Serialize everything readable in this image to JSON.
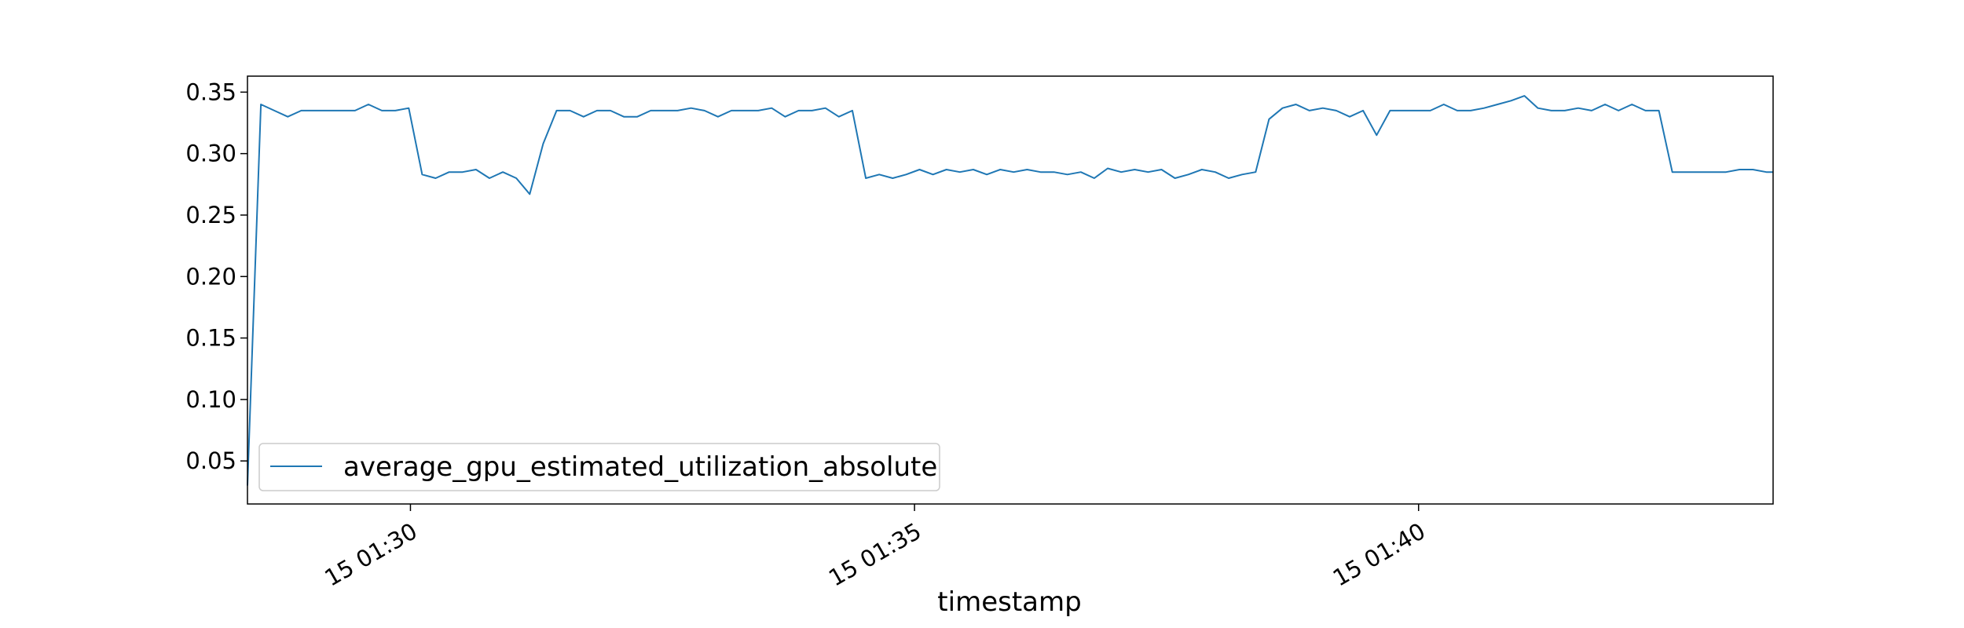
{
  "chart_data": {
    "type": "line",
    "title": "",
    "xlabel": "timestamp",
    "ylabel": "",
    "x_ticks": [
      "15 01:30",
      "15 01:35",
      "15 01:40"
    ],
    "y_ticks": [
      "0.05",
      "0.10",
      "0.15",
      "0.20",
      "0.25",
      "0.30",
      "0.35"
    ],
    "xlim": [
      "01:28:23",
      "01:43:31"
    ],
    "ylim": [
      0.015,
      0.363
    ],
    "grid": false,
    "legend_position": "lower-left",
    "series": [
      {
        "name": "average_gpu_estimated_utilization_absolute",
        "color": "#1f77b4",
        "x": [
          "01:28:23",
          "01:28:31",
          "01:28:39",
          "01:28:47",
          "01:28:55",
          "01:29:03",
          "01:29:11",
          "01:29:19",
          "01:29:27",
          "01:29:35",
          "01:29:43",
          "01:29:51",
          "01:29:59",
          "01:30:07",
          "01:30:15",
          "01:30:23",
          "01:30:31",
          "01:30:39",
          "01:30:47",
          "01:30:55",
          "01:31:03",
          "01:31:11",
          "01:31:19",
          "01:31:27",
          "01:31:35",
          "01:31:43",
          "01:31:51",
          "01:31:59",
          "01:32:07",
          "01:32:15",
          "01:32:23",
          "01:32:31",
          "01:32:39",
          "01:32:47",
          "01:32:55",
          "01:33:03",
          "01:33:11",
          "01:33:19",
          "01:33:27",
          "01:33:35",
          "01:33:43",
          "01:33:51",
          "01:33:59",
          "01:34:07",
          "01:34:15",
          "01:34:23",
          "01:34:31",
          "01:34:39",
          "01:34:47",
          "01:34:55",
          "01:35:03",
          "01:35:11",
          "01:35:19",
          "01:35:27",
          "01:35:35",
          "01:35:43",
          "01:35:51",
          "01:35:59",
          "01:36:07",
          "01:36:15",
          "01:36:23",
          "01:36:31",
          "01:36:39",
          "01:36:47",
          "01:36:55",
          "01:37:03",
          "01:37:11",
          "01:37:19",
          "01:37:27",
          "01:37:35",
          "01:37:43",
          "01:37:51",
          "01:37:59",
          "01:38:07",
          "01:38:15",
          "01:38:23",
          "01:38:31",
          "01:38:39",
          "01:38:47",
          "01:38:55",
          "01:39:03",
          "01:39:11",
          "01:39:19",
          "01:39:27",
          "01:39:35",
          "01:39:43",
          "01:39:51",
          "01:39:59",
          "01:40:07",
          "01:40:15",
          "01:40:23",
          "01:40:31",
          "01:40:39",
          "01:40:47",
          "01:40:55",
          "01:41:03",
          "01:41:11",
          "01:41:19",
          "01:41:27",
          "01:41:35",
          "01:41:43",
          "01:41:51",
          "01:41:59",
          "01:42:07",
          "01:42:15",
          "01:42:23",
          "01:42:31",
          "01:42:39",
          "01:42:47",
          "01:42:55",
          "01:43:03",
          "01:43:11",
          "01:43:19",
          "01:43:27",
          "01:43:31"
        ],
        "values": [
          0.03,
          0.34,
          0.335,
          0.33,
          0.335,
          0.335,
          0.335,
          0.335,
          0.335,
          0.34,
          0.335,
          0.335,
          0.337,
          0.283,
          0.28,
          0.285,
          0.285,
          0.287,
          0.28,
          0.285,
          0.28,
          0.267,
          0.308,
          0.335,
          0.335,
          0.33,
          0.335,
          0.335,
          0.33,
          0.33,
          0.335,
          0.335,
          0.335,
          0.337,
          0.335,
          0.33,
          0.335,
          0.335,
          0.335,
          0.337,
          0.33,
          0.335,
          0.335,
          0.337,
          0.33,
          0.335,
          0.28,
          0.283,
          0.28,
          0.283,
          0.287,
          0.283,
          0.287,
          0.285,
          0.287,
          0.283,
          0.287,
          0.285,
          0.287,
          0.285,
          0.285,
          0.283,
          0.285,
          0.28,
          0.288,
          0.285,
          0.287,
          0.285,
          0.287,
          0.28,
          0.283,
          0.287,
          0.285,
          0.28,
          0.283,
          0.285,
          0.328,
          0.337,
          0.34,
          0.335,
          0.337,
          0.335,
          0.33,
          0.335,
          0.315,
          0.335,
          0.335,
          0.335,
          0.335,
          0.34,
          0.335,
          0.335,
          0.337,
          0.34,
          0.343,
          0.347,
          0.337,
          0.335,
          0.335,
          0.337,
          0.335,
          0.34,
          0.335,
          0.34,
          0.335,
          0.335,
          0.285,
          0.285,
          0.285,
          0.285,
          0.285,
          0.287,
          0.287,
          0.285,
          0.285
        ]
      }
    ]
  }
}
